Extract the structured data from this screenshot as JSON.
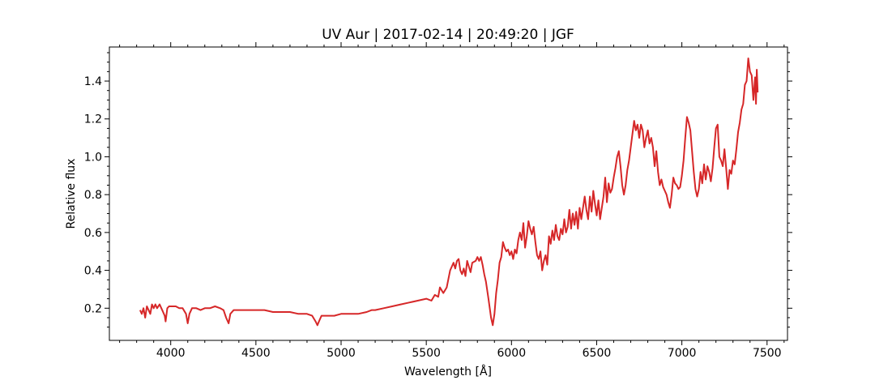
{
  "chart_data": {
    "type": "line",
    "title": "UV Aur | 2017-02-14 | 20:49:20 | JGF",
    "xlabel": "Wavelength [Å]",
    "ylabel": "Relative flux",
    "xlim": [
      3640,
      7620
    ],
    "ylim": [
      0.03,
      1.58
    ],
    "x_ticks": [
      4000,
      4500,
      5000,
      5500,
      6000,
      6500,
      7000,
      7500
    ],
    "x_tick_labels": [
      "4000",
      "4500",
      "5000",
      "5500",
      "6000",
      "6500",
      "7000",
      "7500"
    ],
    "y_ticks": [
      0.2,
      0.4,
      0.6,
      0.8,
      1.0,
      1.2,
      1.4
    ],
    "y_tick_labels": [
      "0.2",
      "0.4",
      "0.6",
      "0.8",
      "1.0",
      "1.2",
      "1.4"
    ],
    "grid": false,
    "series": [
      {
        "color": "#d62728",
        "points": [
          [
            3820,
            0.19
          ],
          [
            3830,
            0.17
          ],
          [
            3840,
            0.2
          ],
          [
            3850,
            0.15
          ],
          [
            3860,
            0.21
          ],
          [
            3870,
            0.19
          ],
          [
            3880,
            0.17
          ],
          [
            3890,
            0.22
          ],
          [
            3900,
            0.2
          ],
          [
            3910,
            0.22
          ],
          [
            3920,
            0.2
          ],
          [
            3935,
            0.22
          ],
          [
            3950,
            0.19
          ],
          [
            3965,
            0.16
          ],
          [
            3970,
            0.13
          ],
          [
            3980,
            0.2
          ],
          [
            3990,
            0.21
          ],
          [
            4010,
            0.21
          ],
          [
            4030,
            0.21
          ],
          [
            4050,
            0.2
          ],
          [
            4070,
            0.2
          ],
          [
            4090,
            0.17
          ],
          [
            4100,
            0.12
          ],
          [
            4110,
            0.17
          ],
          [
            4125,
            0.2
          ],
          [
            4150,
            0.2
          ],
          [
            4175,
            0.19
          ],
          [
            4200,
            0.2
          ],
          [
            4230,
            0.2
          ],
          [
            4260,
            0.21
          ],
          [
            4290,
            0.2
          ],
          [
            4310,
            0.19
          ],
          [
            4325,
            0.15
          ],
          [
            4340,
            0.12
          ],
          [
            4350,
            0.17
          ],
          [
            4370,
            0.19
          ],
          [
            4400,
            0.19
          ],
          [
            4430,
            0.19
          ],
          [
            4460,
            0.19
          ],
          [
            4500,
            0.19
          ],
          [
            4550,
            0.19
          ],
          [
            4600,
            0.18
          ],
          [
            4650,
            0.18
          ],
          [
            4700,
            0.18
          ],
          [
            4750,
            0.17
          ],
          [
            4800,
            0.17
          ],
          [
            4830,
            0.16
          ],
          [
            4850,
            0.13
          ],
          [
            4861,
            0.11
          ],
          [
            4870,
            0.13
          ],
          [
            4885,
            0.16
          ],
          [
            4920,
            0.16
          ],
          [
            4960,
            0.16
          ],
          [
            5000,
            0.17
          ],
          [
            5050,
            0.17
          ],
          [
            5100,
            0.17
          ],
          [
            5150,
            0.18
          ],
          [
            5180,
            0.19
          ],
          [
            5200,
            0.19
          ],
          [
            5250,
            0.2
          ],
          [
            5300,
            0.21
          ],
          [
            5350,
            0.22
          ],
          [
            5400,
            0.23
          ],
          [
            5450,
            0.24
          ],
          [
            5500,
            0.25
          ],
          [
            5530,
            0.24
          ],
          [
            5550,
            0.27
          ],
          [
            5570,
            0.26
          ],
          [
            5580,
            0.31
          ],
          [
            5600,
            0.28
          ],
          [
            5620,
            0.31
          ],
          [
            5640,
            0.4
          ],
          [
            5660,
            0.44
          ],
          [
            5670,
            0.41
          ],
          [
            5680,
            0.45
          ],
          [
            5690,
            0.46
          ],
          [
            5700,
            0.4
          ],
          [
            5710,
            0.38
          ],
          [
            5720,
            0.41
          ],
          [
            5730,
            0.37
          ],
          [
            5740,
            0.45
          ],
          [
            5750,
            0.42
          ],
          [
            5760,
            0.39
          ],
          [
            5770,
            0.44
          ],
          [
            5790,
            0.45
          ],
          [
            5800,
            0.47
          ],
          [
            5810,
            0.45
          ],
          [
            5820,
            0.47
          ],
          [
            5830,
            0.43
          ],
          [
            5840,
            0.38
          ],
          [
            5850,
            0.34
          ],
          [
            5865,
            0.25
          ],
          [
            5880,
            0.15
          ],
          [
            5890,
            0.11
          ],
          [
            5900,
            0.17
          ],
          [
            5910,
            0.28
          ],
          [
            5920,
            0.35
          ],
          [
            5930,
            0.44
          ],
          [
            5940,
            0.47
          ],
          [
            5950,
            0.55
          ],
          [
            5960,
            0.52
          ],
          [
            5970,
            0.5
          ],
          [
            5980,
            0.51
          ],
          [
            5990,
            0.48
          ],
          [
            6000,
            0.5
          ],
          [
            6010,
            0.46
          ],
          [
            6020,
            0.51
          ],
          [
            6030,
            0.49
          ],
          [
            6040,
            0.56
          ],
          [
            6050,
            0.6
          ],
          [
            6060,
            0.56
          ],
          [
            6070,
            0.65
          ],
          [
            6080,
            0.52
          ],
          [
            6090,
            0.58
          ],
          [
            6100,
            0.66
          ],
          [
            6110,
            0.62
          ],
          [
            6120,
            0.59
          ],
          [
            6130,
            0.63
          ],
          [
            6140,
            0.55
          ],
          [
            6150,
            0.48
          ],
          [
            6160,
            0.46
          ],
          [
            6170,
            0.5
          ],
          [
            6180,
            0.4
          ],
          [
            6190,
            0.45
          ],
          [
            6200,
            0.48
          ],
          [
            6210,
            0.43
          ],
          [
            6220,
            0.58
          ],
          [
            6230,
            0.54
          ],
          [
            6240,
            0.61
          ],
          [
            6250,
            0.56
          ],
          [
            6260,
            0.64
          ],
          [
            6270,
            0.58
          ],
          [
            6280,
            0.56
          ],
          [
            6290,
            0.62
          ],
          [
            6300,
            0.59
          ],
          [
            6310,
            0.67
          ],
          [
            6320,
            0.6
          ],
          [
            6330,
            0.63
          ],
          [
            6340,
            0.72
          ],
          [
            6350,
            0.62
          ],
          [
            6360,
            0.7
          ],
          [
            6370,
            0.64
          ],
          [
            6380,
            0.71
          ],
          [
            6390,
            0.62
          ],
          [
            6400,
            0.73
          ],
          [
            6410,
            0.67
          ],
          [
            6420,
            0.73
          ],
          [
            6430,
            0.79
          ],
          [
            6440,
            0.72
          ],
          [
            6450,
            0.67
          ],
          [
            6460,
            0.79
          ],
          [
            6470,
            0.71
          ],
          [
            6480,
            0.82
          ],
          [
            6490,
            0.75
          ],
          [
            6500,
            0.69
          ],
          [
            6510,
            0.77
          ],
          [
            6520,
            0.67
          ],
          [
            6530,
            0.73
          ],
          [
            6540,
            0.79
          ],
          [
            6550,
            0.89
          ],
          [
            6560,
            0.76
          ],
          [
            6570,
            0.86
          ],
          [
            6580,
            0.81
          ],
          [
            6590,
            0.83
          ],
          [
            6600,
            0.89
          ],
          [
            6610,
            0.94
          ],
          [
            6620,
            1.0
          ],
          [
            6630,
            1.03
          ],
          [
            6640,
            0.95
          ],
          [
            6650,
            0.85
          ],
          [
            6660,
            0.8
          ],
          [
            6670,
            0.85
          ],
          [
            6680,
            0.93
          ],
          [
            6690,
            0.98
          ],
          [
            6700,
            1.05
          ],
          [
            6710,
            1.12
          ],
          [
            6720,
            1.19
          ],
          [
            6730,
            1.14
          ],
          [
            6740,
            1.17
          ],
          [
            6750,
            1.1
          ],
          [
            6760,
            1.17
          ],
          [
            6770,
            1.14
          ],
          [
            6780,
            1.05
          ],
          [
            6790,
            1.1
          ],
          [
            6800,
            1.14
          ],
          [
            6810,
            1.07
          ],
          [
            6820,
            1.1
          ],
          [
            6830,
            1.05
          ],
          [
            6840,
            0.95
          ],
          [
            6850,
            1.03
          ],
          [
            6860,
            0.92
          ],
          [
            6870,
            0.85
          ],
          [
            6880,
            0.88
          ],
          [
            6890,
            0.84
          ],
          [
            6900,
            0.82
          ],
          [
            6910,
            0.8
          ],
          [
            6920,
            0.76
          ],
          [
            6930,
            0.73
          ],
          [
            6940,
            0.8
          ],
          [
            6950,
            0.89
          ],
          [
            6960,
            0.86
          ],
          [
            6970,
            0.85
          ],
          [
            6980,
            0.83
          ],
          [
            6990,
            0.84
          ],
          [
            7000,
            0.9
          ],
          [
            7010,
            0.98
          ],
          [
            7020,
            1.1
          ],
          [
            7030,
            1.21
          ],
          [
            7040,
            1.18
          ],
          [
            7050,
            1.14
          ],
          [
            7060,
            1.03
          ],
          [
            7070,
            0.92
          ],
          [
            7080,
            0.83
          ],
          [
            7090,
            0.79
          ],
          [
            7100,
            0.83
          ],
          [
            7110,
            0.92
          ],
          [
            7120,
            0.86
          ],
          [
            7130,
            0.96
          ],
          [
            7140,
            0.88
          ],
          [
            7150,
            0.95
          ],
          [
            7160,
            0.92
          ],
          [
            7170,
            0.87
          ],
          [
            7180,
            0.94
          ],
          [
            7190,
            1.05
          ],
          [
            7200,
            1.15
          ],
          [
            7210,
            1.17
          ],
          [
            7220,
            1.0
          ],
          [
            7230,
            0.98
          ],
          [
            7240,
            0.95
          ],
          [
            7250,
            1.04
          ],
          [
            7260,
            0.94
          ],
          [
            7270,
            0.83
          ],
          [
            7280,
            0.93
          ],
          [
            7290,
            0.91
          ],
          [
            7300,
            0.98
          ],
          [
            7310,
            0.96
          ],
          [
            7320,
            1.04
          ],
          [
            7330,
            1.13
          ],
          [
            7340,
            1.18
          ],
          [
            7350,
            1.25
          ],
          [
            7360,
            1.28
          ],
          [
            7370,
            1.38
          ],
          [
            7380,
            1.4
          ],
          [
            7390,
            1.52
          ],
          [
            7400,
            1.45
          ],
          [
            7410,
            1.43
          ],
          [
            7420,
            1.3
          ],
          [
            7430,
            1.42
          ],
          [
            7435,
            1.28
          ],
          [
            7440,
            1.46
          ],
          [
            7445,
            1.34
          ]
        ]
      }
    ]
  }
}
